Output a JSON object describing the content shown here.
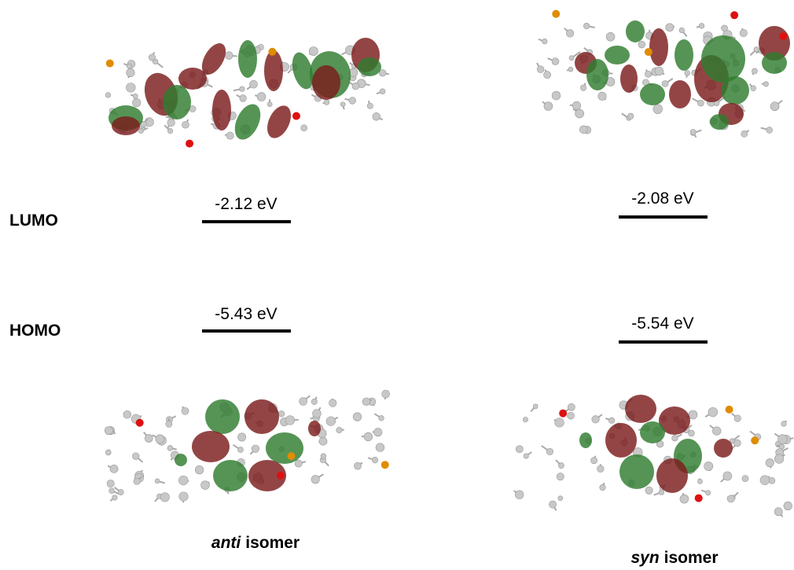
{
  "levels": {
    "lumo": "LUMO",
    "homo": "HOMO"
  },
  "isomers": [
    {
      "italic": "anti",
      "label": "isomer",
      "lumo": "-2.12 eV",
      "homo": "-5.43 eV"
    },
    {
      "italic": "syn",
      "label": "isomer",
      "lumo": "-2.08 eV",
      "homo": "-5.54 eV"
    }
  ]
}
